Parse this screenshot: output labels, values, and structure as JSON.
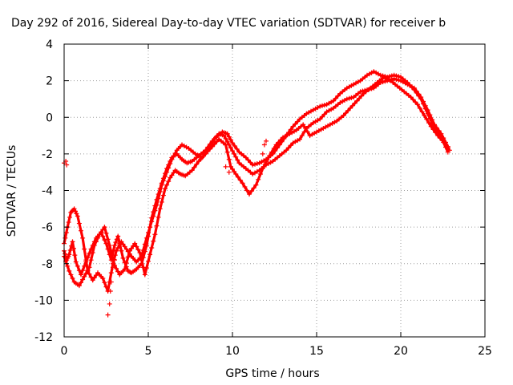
{
  "chart_data": {
    "type": "scatter",
    "title": "Day 292 of 2016, Sidereal Day-to-day VTEC variation (SDTVAR) for receiver b",
    "xlabel": "GPS time / hours",
    "ylabel": "SDTVAR / TECUs",
    "xlim": [
      0,
      25
    ],
    "ylim": [
      -12,
      4
    ],
    "xticks": [
      0,
      5,
      10,
      15,
      20,
      25
    ],
    "yticks": [
      -12,
      -10,
      -8,
      -6,
      -4,
      -2,
      0,
      2,
      4
    ],
    "grid": true,
    "legend": "none",
    "marker": "plus",
    "series_color": "#ff0000",
    "series": [
      {
        "x": [
          0.0,
          0.15,
          0.3,
          0.5,
          0.7,
          1.0,
          1.3,
          1.6,
          1.9,
          2.2,
          2.5,
          2.8,
          3.0,
          3.2,
          3.5,
          3.8,
          4.0,
          4.3,
          4.6,
          4.9,
          5.2,
          5.5,
          5.8,
          6.1,
          6.4,
          6.7,
          7.0,
          7.3,
          7.6,
          8.0,
          8.4,
          8.8,
          9.2,
          9.5,
          9.8,
          10.1,
          10.4,
          10.8,
          11.2,
          11.6,
          12.0,
          12.4,
          12.8,
          13.2,
          13.6,
          14.0,
          14.4,
          14.8,
          15.2,
          15.6,
          16.0,
          16.4,
          16.8,
          17.2,
          17.6,
          18.0,
          18.4,
          18.8,
          19.2,
          19.6,
          20.0,
          20.4,
          20.8,
          21.2,
          21.6,
          22.0,
          22.4,
          22.8
        ],
        "y": [
          -7.3,
          -7.8,
          -7.5,
          -6.8,
          -7.9,
          -8.6,
          -7.9,
          -7.2,
          -6.6,
          -6.3,
          -6.9,
          -7.8,
          -7.0,
          -6.5,
          -7.7,
          -8.4,
          -8.5,
          -8.3,
          -8.0,
          -7.0,
          -5.5,
          -4.5,
          -3.6,
          -2.8,
          -2.2,
          -2.0,
          -2.3,
          -2.5,
          -2.4,
          -2.1,
          -1.8,
          -1.3,
          -0.9,
          -1.0,
          -1.5,
          -2.0,
          -2.5,
          -2.8,
          -3.1,
          -2.9,
          -2.6,
          -2.4,
          -2.1,
          -1.8,
          -1.4,
          -1.2,
          -0.6,
          -0.3,
          -0.1,
          0.3,
          0.5,
          0.8,
          1.0,
          1.1,
          1.4,
          1.5,
          1.6,
          1.9,
          2.0,
          2.1,
          2.0,
          1.8,
          1.6,
          1.1,
          0.4,
          -0.4,
          -0.9,
          -1.6
        ]
      },
      {
        "x": [
          0.0,
          0.2,
          0.4,
          0.6,
          0.8,
          1.1,
          1.4,
          1.7,
          2.0,
          2.3,
          2.6,
          2.9,
          3.1,
          3.4,
          3.7,
          4.0,
          4.3,
          4.6,
          4.9,
          5.2,
          5.5,
          5.8,
          6.1,
          6.4,
          6.7,
          7.0,
          7.4,
          7.8,
          8.2,
          8.6,
          9.0,
          9.4,
          9.7,
          10.0,
          10.4,
          10.8,
          11.2,
          11.6,
          12.0,
          12.4,
          12.8,
          13.2,
          13.6,
          14.0,
          14.4,
          14.8,
          15.2,
          15.6,
          16.0,
          16.4,
          16.8,
          17.2,
          17.6,
          18.0,
          18.4,
          18.8,
          19.2,
          19.6,
          20.0,
          20.4,
          20.8,
          21.2,
          21.6,
          22.0,
          22.4,
          22.8
        ],
        "y": [
          -6.9,
          -6.0,
          -5.2,
          -5.0,
          -5.4,
          -6.6,
          -8.4,
          -8.9,
          -8.5,
          -8.8,
          -9.5,
          -8.0,
          -7.3,
          -6.8,
          -7.2,
          -7.6,
          -7.9,
          -7.6,
          -6.6,
          -5.7,
          -4.8,
          -3.7,
          -3.0,
          -2.3,
          -1.8,
          -1.5,
          -1.7,
          -2.0,
          -2.2,
          -1.7,
          -1.1,
          -0.8,
          -0.9,
          -1.4,
          -1.9,
          -2.2,
          -2.6,
          -2.5,
          -2.3,
          -2.0,
          -1.5,
          -1.0,
          -0.5,
          -0.1,
          0.2,
          0.4,
          0.6,
          0.7,
          0.9,
          1.3,
          1.6,
          1.8,
          2.0,
          2.3,
          2.5,
          2.3,
          2.2,
          2.3,
          2.2,
          1.9,
          1.5,
          1.0,
          0.2,
          -0.6,
          -1.1,
          -1.9
        ]
      },
      {
        "x": [
          0.0,
          0.3,
          0.6,
          0.9,
          1.2,
          1.5,
          1.8,
          2.1,
          2.4,
          2.7,
          3.0,
          3.3,
          3.6,
          3.9,
          4.2,
          4.5,
          4.8,
          5.1,
          5.4,
          5.7,
          6.0,
          6.3,
          6.6,
          6.9,
          7.2,
          7.6,
          8.0,
          8.4,
          8.8,
          9.2,
          9.6,
          9.9,
          10.2,
          10.6,
          11.0,
          11.4,
          11.8,
          12.2,
          12.6,
          13.0,
          13.4,
          13.8,
          14.2,
          14.6,
          15.0,
          15.4,
          15.8,
          16.2,
          16.6,
          17.0,
          17.4,
          17.8,
          18.2,
          18.6,
          19.0,
          19.4,
          19.8,
          20.2,
          20.6,
          21.0,
          21.4,
          21.8,
          22.2,
          22.6,
          22.9
        ],
        "y": [
          -7.6,
          -8.4,
          -9.0,
          -9.2,
          -8.7,
          -8.2,
          -7.0,
          -6.4,
          -6.0,
          -7.0,
          -8.1,
          -8.6,
          -8.3,
          -7.3,
          -6.9,
          -7.4,
          -8.6,
          -7.5,
          -6.4,
          -5.0,
          -3.9,
          -3.3,
          -2.9,
          -3.1,
          -3.2,
          -2.9,
          -2.4,
          -2.0,
          -1.6,
          -1.2,
          -1.5,
          -2.7,
          -3.1,
          -3.6,
          -4.2,
          -3.7,
          -2.8,
          -2.1,
          -1.5,
          -1.1,
          -0.9,
          -0.7,
          -0.4,
          -1.0,
          -0.8,
          -0.6,
          -0.4,
          -0.2,
          0.1,
          0.5,
          0.9,
          1.3,
          1.6,
          1.9,
          2.2,
          2.0,
          1.7,
          1.4,
          1.1,
          0.7,
          0.1,
          -0.5,
          -1.0,
          -1.4,
          -1.8
        ]
      },
      {
        "x": [
          0.0,
          0.1,
          0.15,
          2.6,
          2.7,
          2.75,
          2.8,
          2.9,
          3.0,
          11.8,
          11.9,
          12.0,
          9.6,
          9.8
        ],
        "y": [
          -2.5,
          -2.4,
          -2.6,
          -10.8,
          -10.2,
          -9.5,
          -9.0,
          -8.2,
          -7.8,
          -2.0,
          -1.5,
          -1.3,
          -2.7,
          -3.0
        ]
      }
    ]
  }
}
